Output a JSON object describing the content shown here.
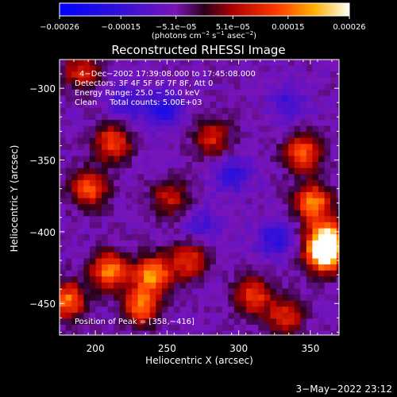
{
  "chart_data": {
    "type": "heatmap",
    "title": "Reconstructed RHESSI Image",
    "xlabel": "Heliocentric X (arcsec)",
    "ylabel": "Heliocentric Y (arcsec)",
    "xlim": [
      175,
      370
    ],
    "ylim": [
      -472,
      -280
    ],
    "x_ticks": [
      200,
      250,
      300,
      350
    ],
    "x_tick_labels": [
      "200",
      "250",
      "300",
      "350"
    ],
    "y_ticks": [
      -300,
      -350,
      -400,
      -450
    ],
    "y_tick_labels": [
      "−300",
      "−350",
      "−400",
      "−450"
    ],
    "colorbar": {
      "range": [
        -0.00026,
        0.00026
      ],
      "ticks": [
        -0.00026,
        -0.00015,
        -5.1e-05,
        5.1e-05,
        0.00015,
        0.00026
      ],
      "tick_labels": [
        "−0.00026",
        "−0.00015",
        "−5.1e−05",
        "5.1e−05",
        "0.00015",
        "0.00026"
      ],
      "units_parts": [
        "(photons cm",
        "−2",
        " s",
        "−1",
        " asec",
        "−2",
        ")"
      ]
    },
    "annotations": {
      "time_range": "4−Dec−2002 17:39:08.000 to 17:45:08.000",
      "detectors": "Detectors: 3F 4F 5F 6F 7F 8F, Att 0",
      "energy_range": "Energy Range: 25.0 − 50.0 keV",
      "method": "Clean     Total counts: 5.00E+03",
      "peak": "Position of Peak = [358,−416]"
    },
    "hotspots": [
      {
        "x": 360,
        "y": -416,
        "value": 0.00026
      },
      {
        "x": 362,
        "y": -405,
        "value": 0.00024
      },
      {
        "x": 180,
        "y": -448,
        "value": 0.00018
      },
      {
        "x": 240,
        "y": -430,
        "value": 0.0002
      },
      {
        "x": 210,
        "y": -427,
        "value": 0.00019
      },
      {
        "x": 232,
        "y": -452,
        "value": 0.00017
      },
      {
        "x": 196,
        "y": -370,
        "value": 0.00015
      },
      {
        "x": 345,
        "y": -345,
        "value": 0.00016
      },
      {
        "x": 352,
        "y": -380,
        "value": 0.00019
      },
      {
        "x": 212,
        "y": -338,
        "value": 0.00014
      },
      {
        "x": 265,
        "y": -420,
        "value": 0.00012
      },
      {
        "x": 310,
        "y": -445,
        "value": 0.00013
      },
      {
        "x": 190,
        "y": -288,
        "value": 0.0001
      },
      {
        "x": 282,
        "y": -335,
        "value": 0.0001
      },
      {
        "x": 332,
        "y": -460,
        "value": 0.00011
      },
      {
        "x": 252,
        "y": -376,
        "value": 9e-05
      }
    ],
    "coldspots": [
      {
        "x": 248,
        "y": -315,
        "value": -0.00012
      },
      {
        "x": 295,
        "y": -360,
        "value": -0.0001
      },
      {
        "x": 325,
        "y": -405,
        "value": -0.00011
      },
      {
        "x": 222,
        "y": -310,
        "value": -9e-05
      },
      {
        "x": 335,
        "y": -310,
        "value": -8e-05
      },
      {
        "x": 275,
        "y": -395,
        "value": -7e-05
      }
    ]
  },
  "footer": {
    "timestamp": "3−May−2022 23:12"
  }
}
